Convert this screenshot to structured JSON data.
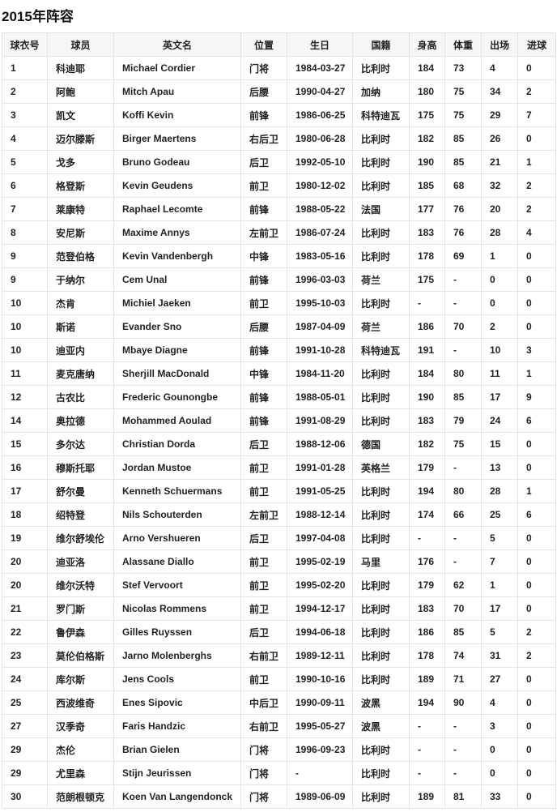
{
  "title": "2015年阵容",
  "columns": [
    "球衣号",
    "球员",
    "英文名",
    "位置",
    "生日",
    "国籍",
    "身高",
    "体重",
    "出场",
    "进球"
  ],
  "rows": [
    [
      "1",
      "科迪耶",
      "Michael Cordier",
      "门将",
      "1984-03-27",
      "比利时",
      "184",
      "73",
      "4",
      "0"
    ],
    [
      "2",
      "阿鲍",
      "Mitch Apau",
      "后腰",
      "1990-04-27",
      "加纳",
      "180",
      "75",
      "34",
      "2"
    ],
    [
      "3",
      "凯文",
      "Koffi Kevin",
      "前锋",
      "1986-06-25",
      "科特迪瓦",
      "175",
      "75",
      "29",
      "7"
    ],
    [
      "4",
      "迈尔滕斯",
      "Birger Maertens",
      "右后卫",
      "1980-06-28",
      "比利时",
      "182",
      "85",
      "26",
      "0"
    ],
    [
      "5",
      "戈多",
      "Bruno Godeau",
      "后卫",
      "1992-05-10",
      "比利时",
      "190",
      "85",
      "21",
      "1"
    ],
    [
      "6",
      "格登斯",
      "Kevin Geudens",
      "前卫",
      "1980-12-02",
      "比利时",
      "185",
      "68",
      "32",
      "2"
    ],
    [
      "7",
      "莱康特",
      "Raphael Lecomte",
      "前锋",
      "1988-05-22",
      "法国",
      "177",
      "76",
      "20",
      "2"
    ],
    [
      "8",
      "安尼斯",
      "Maxime Annys",
      "左前卫",
      "1986-07-24",
      "比利时",
      "183",
      "76",
      "28",
      "4"
    ],
    [
      "9",
      "范登伯格",
      "Kevin Vandenbergh",
      "中锋",
      "1983-05-16",
      "比利时",
      "178",
      "69",
      "1",
      "0"
    ],
    [
      "9",
      "于纳尔",
      "Cem Unal",
      "前锋",
      "1996-03-03",
      "荷兰",
      "175",
      "-",
      "0",
      "0"
    ],
    [
      "10",
      "杰肯",
      "Michiel Jaeken",
      "前卫",
      "1995-10-03",
      "比利时",
      "-",
      "-",
      "0",
      "0"
    ],
    [
      "10",
      "斯诺",
      "Evander Sno",
      "后腰",
      "1987-04-09",
      "荷兰",
      "186",
      "70",
      "2",
      "0"
    ],
    [
      "10",
      "迪亚内",
      "Mbaye Diagne",
      "前锋",
      "1991-10-28",
      "科特迪瓦",
      "191",
      "-",
      "10",
      "3"
    ],
    [
      "11",
      "麦克唐纳",
      "Sherjill MacDonald",
      "中锋",
      "1984-11-20",
      "比利时",
      "184",
      "80",
      "11",
      "1"
    ],
    [
      "12",
      "古农比",
      "Frederic Gounongbe",
      "前锋",
      "1988-05-01",
      "比利时",
      "190",
      "85",
      "17",
      "9"
    ],
    [
      "14",
      "奥拉德",
      "Mohammed Aoulad",
      "前锋",
      "1991-08-29",
      "比利时",
      "183",
      "79",
      "24",
      "6"
    ],
    [
      "15",
      "多尔达",
      "Christian Dorda",
      "后卫",
      "1988-12-06",
      "德国",
      "182",
      "75",
      "15",
      "0"
    ],
    [
      "16",
      "穆斯托耶",
      "Jordan Mustoe",
      "前卫",
      "1991-01-28",
      "英格兰",
      "179",
      "-",
      "13",
      "0"
    ],
    [
      "17",
      "舒尔曼",
      "Kenneth Schuermans",
      "前卫",
      "1991-05-25",
      "比利时",
      "194",
      "80",
      "28",
      "1"
    ],
    [
      "18",
      "绍特登",
      "Nils Schouterden",
      "左前卫",
      "1988-12-14",
      "比利时",
      "174",
      "66",
      "25",
      "6"
    ],
    [
      "19",
      "维尔舒埃伦",
      "Arno Vershueren",
      "后卫",
      "1997-04-08",
      "比利时",
      "-",
      "-",
      "5",
      "0"
    ],
    [
      "20",
      "迪亚洛",
      "Alassane Diallo",
      "前卫",
      "1995-02-19",
      "马里",
      "176",
      "-",
      "7",
      "0"
    ],
    [
      "20",
      "维尔沃特",
      "Stef Vervoort",
      "前卫",
      "1995-02-20",
      "比利时",
      "179",
      "62",
      "1",
      "0"
    ],
    [
      "21",
      "罗门斯",
      "Nicolas Rommens",
      "前卫",
      "1994-12-17",
      "比利时",
      "183",
      "70",
      "17",
      "0"
    ],
    [
      "22",
      "鲁伊森",
      "Gilles Ruyssen",
      "后卫",
      "1994-06-18",
      "比利时",
      "186",
      "85",
      "5",
      "2"
    ],
    [
      "23",
      "莫伦伯格斯",
      "Jarno Molenberghs",
      "右前卫",
      "1989-12-11",
      "比利时",
      "178",
      "74",
      "31",
      "2"
    ],
    [
      "24",
      "库尔斯",
      "Jens Cools",
      "前卫",
      "1990-10-16",
      "比利时",
      "189",
      "71",
      "27",
      "0"
    ],
    [
      "25",
      "西波维奇",
      "Enes Sipovic",
      "中后卫",
      "1990-09-11",
      "波黑",
      "194",
      "90",
      "4",
      "0"
    ],
    [
      "27",
      "汉季奇",
      "Faris Handzic",
      "右前卫",
      "1995-05-27",
      "波黑",
      "-",
      "-",
      "3",
      "0"
    ],
    [
      "29",
      "杰伦",
      "Brian Gielen",
      "门将",
      "1996-09-23",
      "比利时",
      "-",
      "-",
      "0",
      "0"
    ],
    [
      "29",
      "尤里森",
      "Stijn Jeurissen",
      "门将",
      "-",
      "比利时",
      "-",
      "-",
      "0",
      "0"
    ],
    [
      "30",
      "范朗根顿克",
      "Koen Van Langendonck",
      "门将",
      "1989-06-09",
      "比利时",
      "189",
      "81",
      "33",
      "0"
    ]
  ]
}
